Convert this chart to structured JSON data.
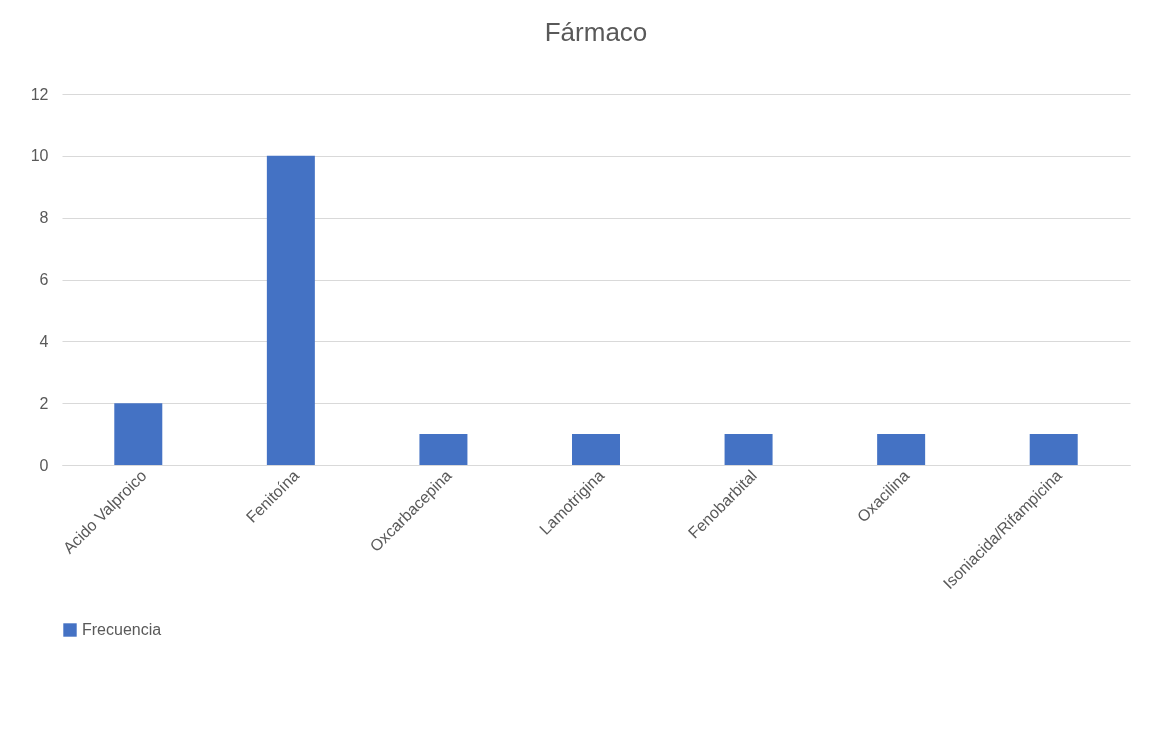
{
  "chart_data": {
    "type": "bar",
    "title": "Fármaco",
    "categories": [
      "Acido Valproico",
      "Fenitoína",
      "Oxcarbacepina",
      "Lamotrigina",
      "Fenobarbital",
      "Oxacilina",
      "Isoniacida/Rifampicina"
    ],
    "series": [
      {
        "name": "Frecuencia",
        "color": "#4472c4",
        "values": [
          2,
          10,
          1,
          1,
          1,
          1,
          1
        ]
      }
    ],
    "ylim": [
      0,
      12
    ],
    "yticks": [
      0,
      2,
      4,
      6,
      8,
      10,
      12
    ],
    "grid": "y",
    "legend": "bottom"
  }
}
